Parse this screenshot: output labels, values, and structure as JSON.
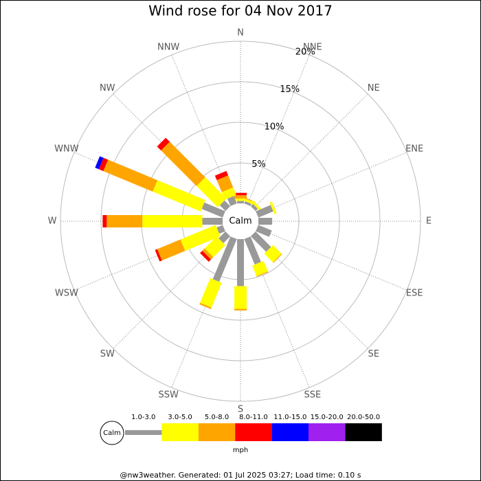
{
  "chart_data": {
    "type": "windrose",
    "title": "Wind rose for 04 Nov 2017",
    "calm_label": "Calm",
    "legend_unit": "mph",
    "footer": "@nw3weather. Generated: 01 Jul 2025 03:27; Load time: 0.10 s",
    "categories": [
      "N",
      "NNE",
      "NE",
      "ENE",
      "E",
      "ESE",
      "SE",
      "SSE",
      "S",
      "SSW",
      "SW",
      "WSW",
      "W",
      "WNW",
      "NW",
      "NNW"
    ],
    "rlim": [
      0,
      20
    ],
    "rticks": [
      {
        "value": 5,
        "label": "5%"
      },
      {
        "value": 10,
        "label": "10%"
      },
      {
        "value": 15,
        "label": "15%"
      },
      {
        "value": 20,
        "label": "20%"
      }
    ],
    "series": [
      {
        "name": "1.0-3.0",
        "color": "#999999",
        "values": [
          0.3,
          0.3,
          0.4,
          2.0,
          1.7,
          1.8,
          2.7,
          3.4,
          5.8,
          5.7,
          1.2,
          0.8,
          2.5,
          2.8,
          1.0,
          1.0
        ]
      },
      {
        "name": "3.0-5.0",
        "color": "#ffff00",
        "values": [
          0.3,
          0.3,
          0.3,
          0.3,
          0,
          0,
          1.5,
          1.4,
          2.8,
          3.3,
          2.1,
          4.7,
          7.4,
          6.4,
          3.7,
          1.0
        ]
      },
      {
        "name": "5.0-8.0",
        "color": "#ffa500",
        "values": [
          0.4,
          0.1,
          0,
          0,
          0,
          0,
          0.1,
          0.1,
          0.2,
          0.2,
          0.4,
          3.1,
          4.4,
          6.6,
          6.2,
          1.6
        ]
      },
      {
        "name": "8.0-11.0",
        "color": "#ff0000",
        "values": [
          0.3,
          0,
          0,
          0,
          0,
          0,
          0,
          0,
          0,
          0,
          0.4,
          0.3,
          0.5,
          0.6,
          0.7,
          0.6
        ]
      },
      {
        "name": "11.0-15.0",
        "color": "#0000ff",
        "values": [
          0,
          0,
          0,
          0,
          0,
          0,
          0,
          0,
          0,
          0,
          0,
          0,
          0,
          0.5,
          0,
          0
        ]
      },
      {
        "name": "15.0-20.0",
        "color": "#a020f0",
        "values": [
          0,
          0,
          0,
          0,
          0,
          0,
          0,
          0,
          0,
          0,
          0,
          0,
          0,
          0,
          0,
          0
        ]
      },
      {
        "name": "20.0-50.0",
        "color": "#000000",
        "values": [
          0,
          0,
          0,
          0,
          0,
          0,
          0,
          0,
          0,
          0,
          0,
          0,
          0,
          0,
          0,
          0
        ]
      }
    ]
  }
}
